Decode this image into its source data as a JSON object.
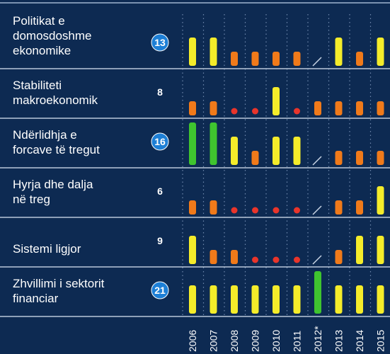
{
  "chart_data": {
    "type": "bar",
    "categories": [
      "2006",
      "2007",
      "2008",
      "2009",
      "2010",
      "2011",
      "2012*",
      "2013",
      "2014",
      "2015"
    ],
    "level_colors": {
      "1": "#e8352b",
      "2": "#f07a1a",
      "4": "#f4ec2a",
      "6": "#3fc42f"
    },
    "rows": [
      {
        "label": [
          "Politikat e",
          "domosdoshme",
          "ekonomike"
        ],
        "score": 13,
        "circled": true,
        "values": [
          4,
          4,
          2,
          2,
          2,
          2,
          null,
          4,
          2,
          4
        ]
      },
      {
        "label": [
          "Stabiliteti",
          "makroekonomik"
        ],
        "score": 8,
        "circled": false,
        "values": [
          2,
          2,
          1,
          1,
          4,
          1,
          2,
          2,
          2,
          2
        ]
      },
      {
        "label": [
          "Ndërlidhja e",
          "forcave të tregut"
        ],
        "score": 16,
        "circled": true,
        "values": [
          6,
          6,
          4,
          2,
          4,
          4,
          null,
          2,
          2,
          2
        ]
      },
      {
        "label": [
          "Hyrja dhe dalja",
          "në treg"
        ],
        "score": 6,
        "circled": false,
        "values": [
          2,
          2,
          1,
          1,
          1,
          1,
          null,
          2,
          2,
          4
        ]
      },
      {
        "label": [
          "Sistemi ligjor"
        ],
        "score": 9,
        "circled": false,
        "values": [
          4,
          2,
          2,
          1,
          1,
          1,
          null,
          2,
          4,
          4
        ]
      },
      {
        "label": [
          "Zhvillimi i sektorit",
          "financiar"
        ],
        "score": 21,
        "circled": true,
        "values": [
          4,
          4,
          4,
          4,
          4,
          4,
          6,
          4,
          4,
          4
        ]
      }
    ]
  }
}
